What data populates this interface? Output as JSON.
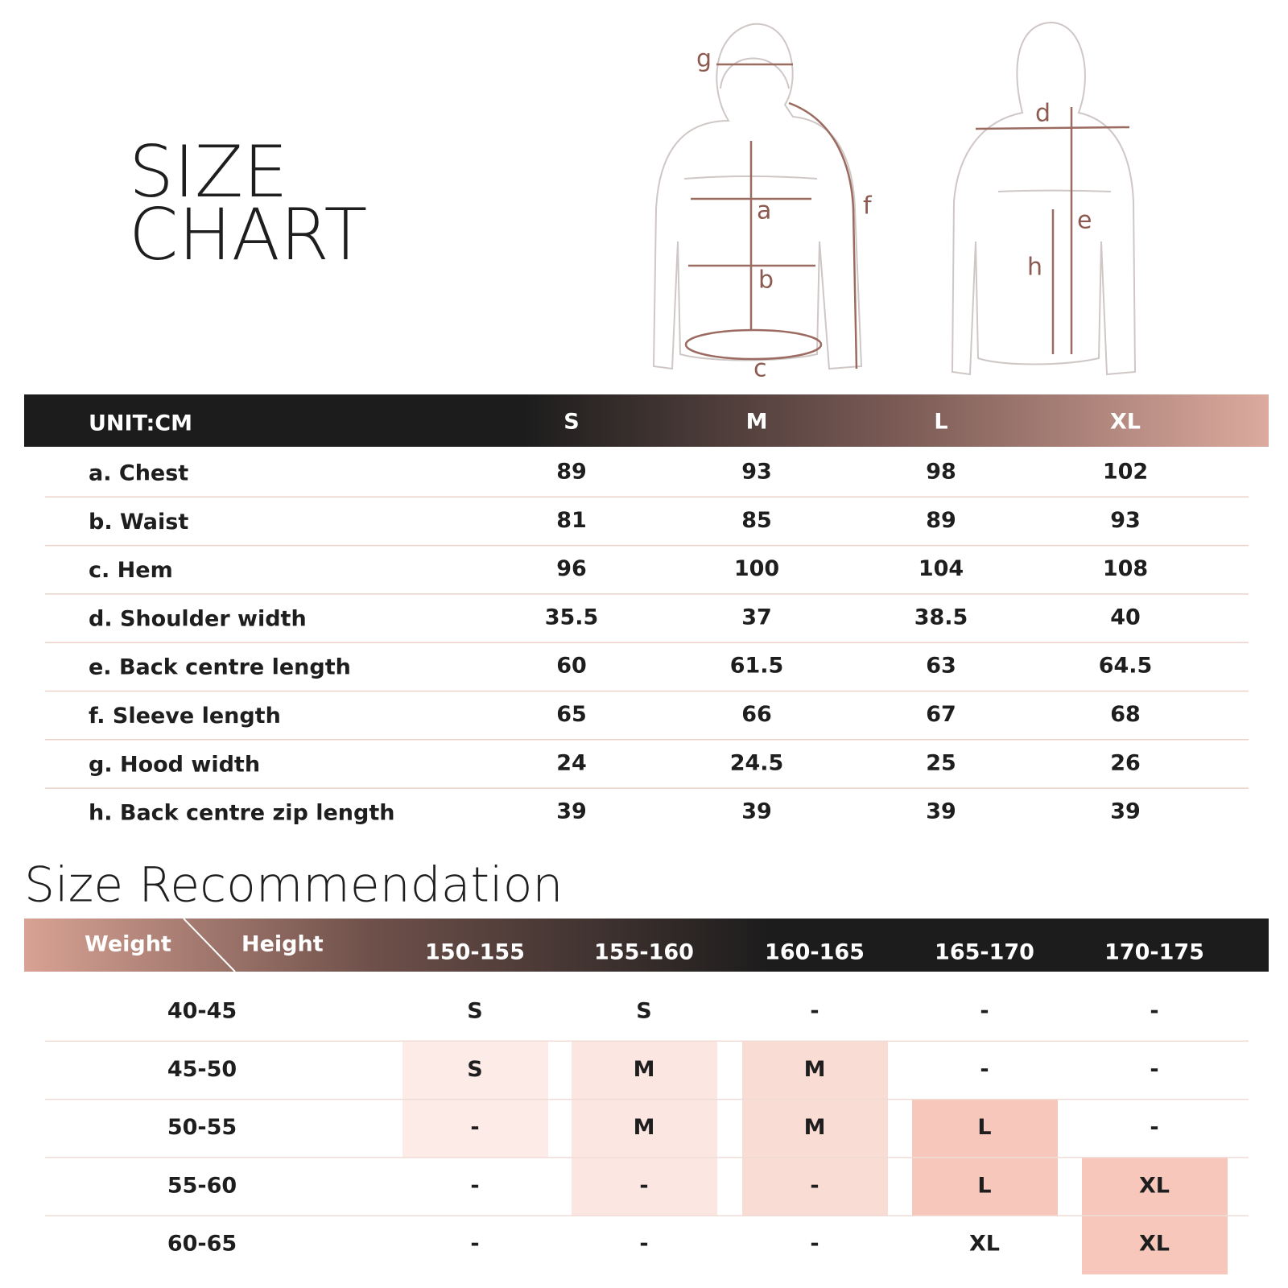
{
  "header": {
    "title_line1": "SIZE",
    "title_line2": "CHART"
  },
  "diagram": {
    "labels": [
      "g",
      "a",
      "b",
      "c",
      "f",
      "d",
      "e",
      "h"
    ]
  },
  "size_table": {
    "unit": "UNIT:CM",
    "sizes": [
      "S",
      "M",
      "L",
      "XL"
    ],
    "rows": [
      {
        "label": "a. Chest",
        "values": [
          89,
          93,
          98,
          102
        ]
      },
      {
        "label": "b. Waist",
        "values": [
          81,
          85,
          89,
          93
        ]
      },
      {
        "label": "c. Hem",
        "values": [
          96,
          100,
          104,
          108
        ]
      },
      {
        "label": "d. Shoulder width",
        "values": [
          35.5,
          37,
          38.5,
          40
        ]
      },
      {
        "label": "e. Back centre length",
        "values": [
          60,
          61.5,
          63,
          64.5
        ]
      },
      {
        "label": "f. Sleeve length",
        "values": [
          65,
          66,
          67,
          68
        ]
      },
      {
        "label": "g. Hood width",
        "values": [
          24,
          24.5,
          25,
          26
        ]
      },
      {
        "label": "h. Back centre zip length",
        "values": [
          39,
          39,
          39,
          39
        ]
      }
    ]
  },
  "recommendation": {
    "title": "Size Recommendation",
    "weight_label": "Weight",
    "height_label": "Height",
    "heights": [
      "150-155",
      "155-160",
      "160-165",
      "165-170",
      "170-175"
    ],
    "rows": [
      {
        "weight": "40-45",
        "cells": [
          "S",
          "S",
          "-",
          "-",
          "-"
        ],
        "shades": [
          null,
          null,
          null,
          null,
          null
        ]
      },
      {
        "weight": "45-50",
        "cells": [
          "S",
          "M",
          "M",
          "-",
          "-"
        ],
        "shades": [
          "#fcebe7",
          "#fbe6e1",
          "#f9dcd4",
          null,
          null
        ]
      },
      {
        "weight": "50-55",
        "cells": [
          "-",
          "M",
          "M",
          "L",
          "-"
        ],
        "shades": [
          "#fcebe7",
          "#fbe6e1",
          "#f9dcd4",
          "#f7c7bb",
          null
        ]
      },
      {
        "weight": "55-60",
        "cells": [
          "-",
          "-",
          "-",
          "L",
          "XL"
        ],
        "shades": [
          null,
          "#fbe6e1",
          "#f9dcd4",
          "#f7c7bb",
          "#f7c7bb"
        ]
      },
      {
        "weight": "60-65",
        "cells": [
          "-",
          "-",
          "-",
          "XL",
          "XL"
        ],
        "shades": [
          null,
          null,
          null,
          null,
          "#f7c7bb"
        ]
      }
    ]
  }
}
